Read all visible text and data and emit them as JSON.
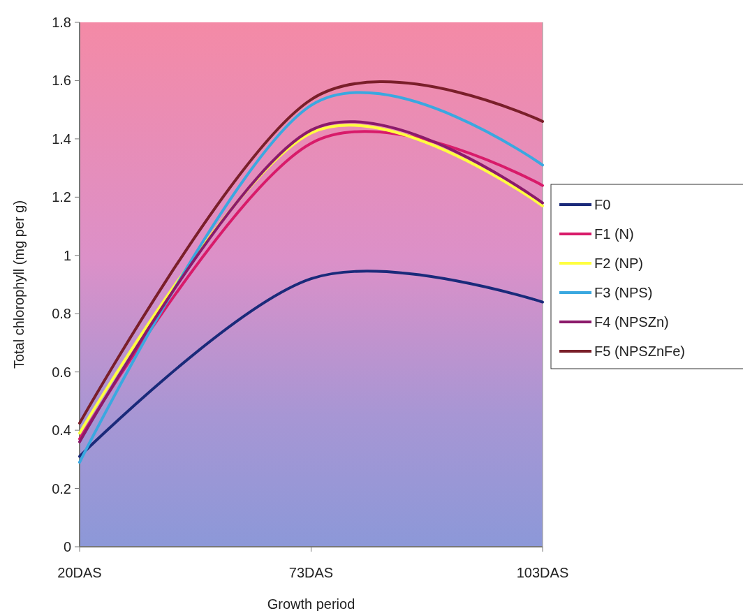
{
  "chart_data": {
    "type": "line",
    "xlabel": "Growth period",
    "ylabel": "Total chlorophyll (mg per g)",
    "categories": [
      "20DAS",
      "73DAS",
      "103DAS"
    ],
    "ylim": [
      0,
      1.8
    ],
    "yticks": [
      0,
      0.2,
      0.4,
      0.6,
      0.8,
      1,
      1.2,
      1.4,
      1.6,
      1.8
    ],
    "legend": "right",
    "grid": false,
    "marker": "none",
    "line_style": "solid",
    "series": [
      {
        "name": "F0",
        "color": "#1a2a7a",
        "values": [
          0.31,
          0.92,
          0.84
        ]
      },
      {
        "name": "F1 (N)",
        "color": "#d81b6a",
        "values": [
          0.37,
          1.385,
          1.24
        ]
      },
      {
        "name": "F2 (NP)",
        "color": "#ffff40",
        "values": [
          0.39,
          1.42,
          1.17
        ]
      },
      {
        "name": "F3 (NPS)",
        "color": "#3aa8e0",
        "values": [
          0.29,
          1.515,
          1.31
        ]
      },
      {
        "name": "F4 (NPSZn)",
        "color": "#8b1a6b",
        "values": [
          0.36,
          1.43,
          1.18
        ]
      },
      {
        "name": "F5 (NPSZnFe)",
        "color": "#7a1f2a",
        "values": [
          0.424,
          1.535,
          1.46
        ]
      }
    ]
  }
}
